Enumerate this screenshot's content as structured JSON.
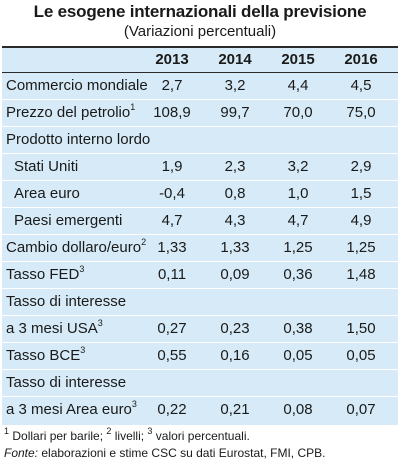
{
  "title": "Le esogene internazionali della previsione",
  "subtitle": "(Variazioni percentuali)",
  "years": [
    "2013",
    "2014",
    "2015",
    "2016"
  ],
  "rows": [
    {
      "label": "Commercio mondiale",
      "sup": "",
      "values": [
        "2,7",
        "3,2",
        "4,4",
        "4,5"
      ]
    },
    {
      "label": "Prezzo del petrolio",
      "sup": "1",
      "values": [
        "108,9",
        "99,7",
        "70,0",
        "75,0"
      ]
    },
    {
      "label": "Prodotto interno lordo",
      "sup": "",
      "values": [
        "",
        "",
        "",
        ""
      ]
    },
    {
      "label": "Stati Uniti",
      "sup": "",
      "values": [
        "1,9",
        "2,3",
        "3,2",
        "2,9"
      ]
    },
    {
      "label": "Area euro",
      "sup": "",
      "values": [
        "-0,4",
        "0,8",
        "1,0",
        "1,5"
      ]
    },
    {
      "label": "Paesi emergenti",
      "sup": "",
      "values": [
        "4,7",
        "4,3",
        "4,7",
        "4,9"
      ]
    },
    {
      "label": "Cambio dollaro/euro",
      "sup": "2",
      "values": [
        "1,33",
        "1,33",
        "1,25",
        "1,25"
      ]
    },
    {
      "label": "Tasso FED",
      "sup": "3",
      "values": [
        "0,11",
        "0,09",
        "0,36",
        "1,48"
      ]
    },
    {
      "label": "Tasso di interesse",
      "sup": "",
      "values": [
        "",
        "",
        "",
        ""
      ]
    },
    {
      "label": "a 3 mesi USA",
      "sup": "3",
      "values": [
        "0,27",
        "0,23",
        "0,38",
        "1,50"
      ]
    },
    {
      "label": "Tasso BCE",
      "sup": "3",
      "values": [
        "0,55",
        "0,16",
        "0,05",
        "0,05"
      ]
    },
    {
      "label": "Tasso di interesse",
      "sup": "",
      "values": [
        "",
        "",
        "",
        ""
      ]
    },
    {
      "label": "a 3 mesi Area euro",
      "sup": "3",
      "values": [
        "0,22",
        "0,21",
        "0,08",
        "0,07"
      ]
    }
  ],
  "notes": {
    "n1_sup": "1",
    "n1_text": " Dollari per barile; ",
    "n2_sup": "2",
    "n2_text": " livelli; ",
    "n3_sup": "3",
    "n3_text": " valori percentuali.",
    "source_label": "Fonte:",
    "source_text": " elaborazioni e stime CSC su dati Eurostat, FMI, CPB."
  },
  "colors": {
    "panel": "#d6ebf7",
    "rule": "#2a2a2a"
  }
}
